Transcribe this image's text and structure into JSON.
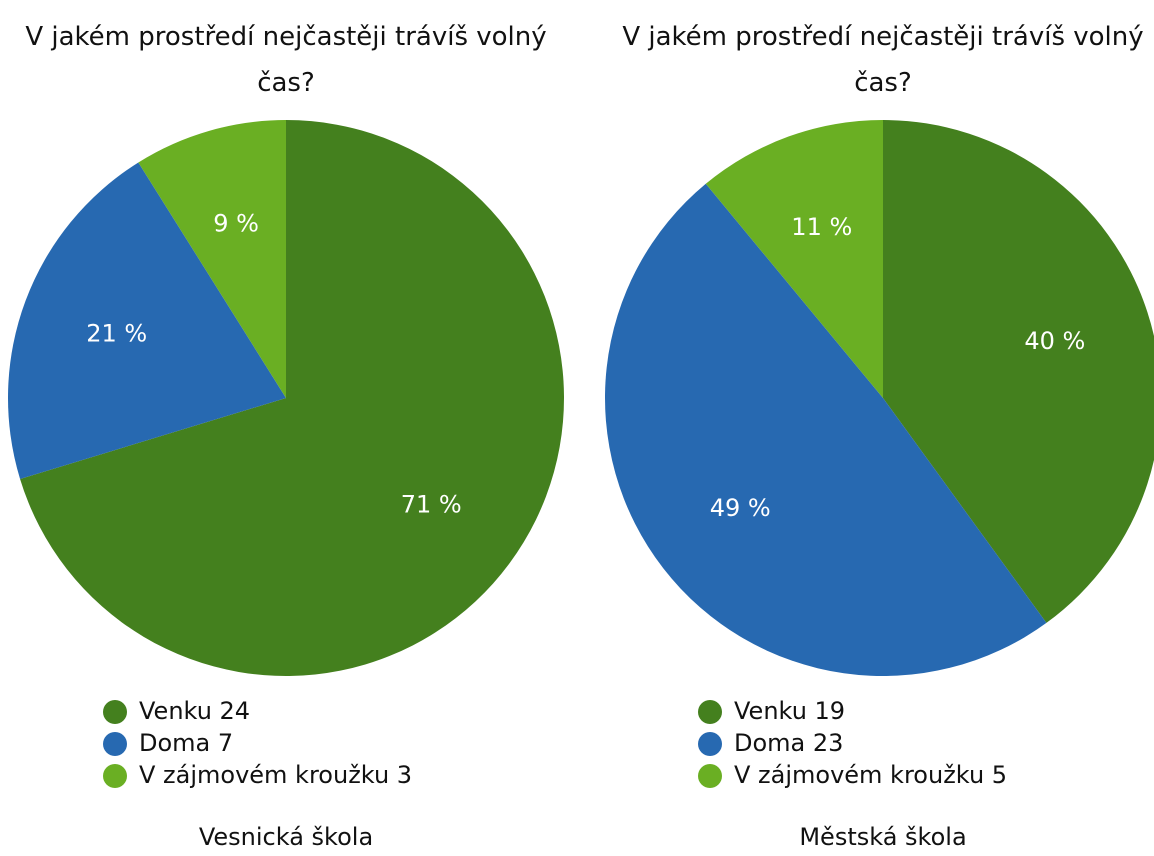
{
  "chart_data": [
    {
      "type": "pie",
      "title": "V jakém prostředí nejčastěji trávíš volný čas?",
      "categories": [
        "Venku 24",
        "Doma 7",
        "V zájmovém kroužku 3"
      ],
      "values": [
        71,
        21,
        9
      ],
      "value_labels": [
        "71 %",
        "21 %",
        "9 %"
      ],
      "colors": [
        "#44801e",
        "#2769b1",
        "#6aaf23"
      ],
      "caption": "Vesnická škola"
    },
    {
      "type": "pie",
      "title": "V jakém prostředí nejčastěji trávíš volný čas?",
      "categories": [
        "Venku 19",
        "Doma 23",
        "V zájmovém kroužku 5"
      ],
      "values": [
        40,
        49,
        11
      ],
      "value_labels": [
        "40 %",
        "49 %",
        "11 %"
      ],
      "colors": [
        "#44801e",
        "#2769b1",
        "#6aaf23"
      ],
      "caption": "Městská škola"
    }
  ]
}
